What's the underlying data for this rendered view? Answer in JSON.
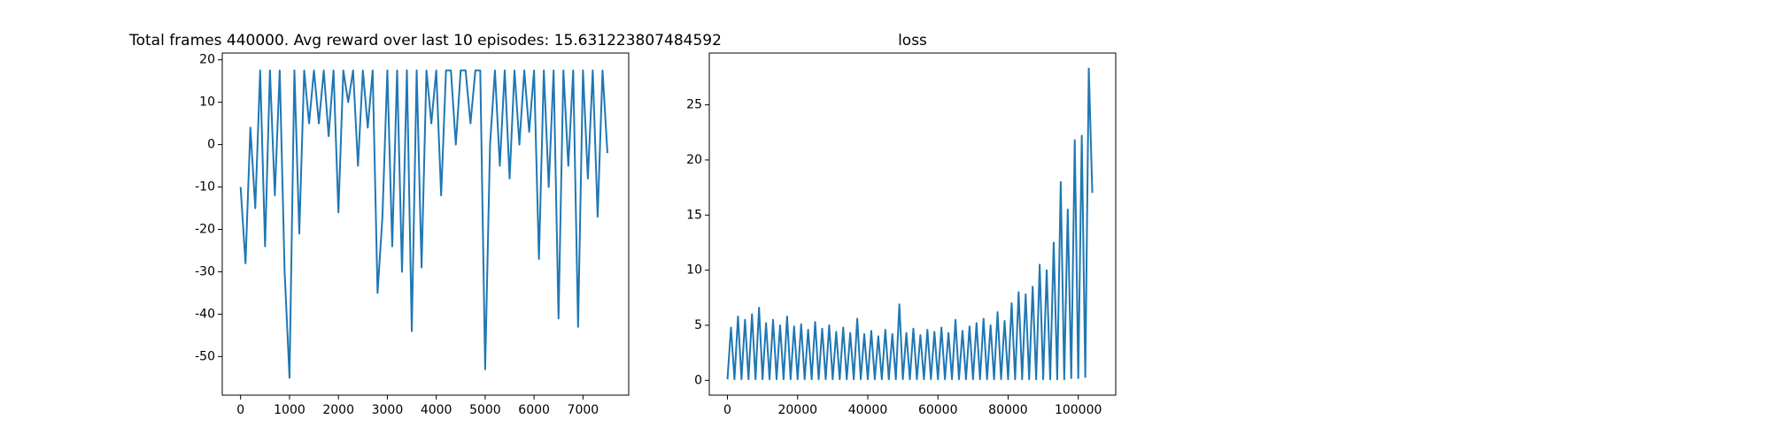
{
  "chart_data": [
    {
      "type": "line",
      "title": "Total frames 440000. Avg reward over last 10 episodes: 15.631223807484592",
      "x": [
        0,
        100,
        200,
        300,
        400,
        500,
        600,
        700,
        800,
        900,
        1000,
        1100,
        1200,
        1300,
        1400,
        1500,
        1600,
        1700,
        1800,
        1900,
        2000,
        2100,
        2200,
        2300,
        2400,
        2500,
        2600,
        2700,
        2800,
        2900,
        3000,
        3100,
        3200,
        3300,
        3400,
        3500,
        3600,
        3700,
        3800,
        3900,
        4000,
        4100,
        4200,
        4300,
        4400,
        4500,
        4600,
        4700,
        4800,
        4900,
        5000,
        5100,
        5200,
        5300,
        5400,
        5500,
        5600,
        5700,
        5800,
        5900,
        6000,
        6100,
        6200,
        6300,
        6400,
        6500,
        6600,
        6700,
        6800,
        6900,
        7000,
        7100,
        7200,
        7300,
        7400,
        7500
      ],
      "series": [
        {
          "color": "#1f77b4",
          "values": [
            -10,
            -28,
            4,
            -15,
            17.5,
            -24,
            17.5,
            -12,
            17.5,
            -30,
            -55,
            17.5,
            -21,
            17.5,
            5,
            17.5,
            5,
            17.5,
            2,
            17.5,
            -16,
            17.5,
            10,
            17.5,
            -5,
            17.5,
            4,
            17.5,
            -35,
            -17,
            17.5,
            -24,
            17.5,
            -30,
            17.5,
            -44,
            17.5,
            -29,
            17.5,
            5,
            17.5,
            -12,
            17.5,
            17.5,
            0,
            17.5,
            17.5,
            5,
            17.5,
            17.5,
            -53,
            0,
            17.5,
            -5,
            17.5,
            -8,
            17.5,
            0,
            17.5,
            3,
            17.5,
            -27,
            17.5,
            -10,
            17.5,
            -41,
            17.5,
            -5,
            17.5,
            -43,
            17.5,
            -8,
            17.5,
            -17,
            17.5,
            -2
          ]
        }
      ],
      "xlim": [
        -375,
        7935
      ],
      "ylim": [
        -59.1,
        21.6
      ],
      "xticks": [
        0,
        1000,
        2000,
        3000,
        4000,
        5000,
        6000,
        7000
      ],
      "yticks": [
        -50,
        -40,
        -30,
        -20,
        -10,
        0,
        10,
        20
      ]
    },
    {
      "type": "line",
      "title": "loss",
      "x": [
        0,
        1000,
        2000,
        3000,
        4000,
        5000,
        6000,
        7000,
        8000,
        9000,
        10000,
        11000,
        12000,
        13000,
        14000,
        15000,
        16000,
        17000,
        18000,
        19000,
        20000,
        21000,
        22000,
        23000,
        24000,
        25000,
        26000,
        27000,
        28000,
        29000,
        30000,
        31000,
        32000,
        33000,
        34000,
        35000,
        36000,
        37000,
        38000,
        39000,
        40000,
        41000,
        42000,
        43000,
        44000,
        45000,
        46000,
        47000,
        48000,
        49000,
        50000,
        51000,
        52000,
        53000,
        54000,
        55000,
        56000,
        57000,
        58000,
        59000,
        60000,
        61000,
        62000,
        63000,
        64000,
        65000,
        66000,
        67000,
        68000,
        69000,
        70000,
        71000,
        72000,
        73000,
        74000,
        75000,
        76000,
        77000,
        78000,
        79000,
        80000,
        81000,
        82000,
        83000,
        84000,
        85000,
        86000,
        87000,
        88000,
        89000,
        90000,
        91000,
        92000,
        93000,
        94000,
        95000,
        96000,
        97000,
        98000,
        99000,
        100000,
        101000,
        102000,
        103000,
        104000
      ],
      "series": [
        {
          "color": "#1f77b4",
          "values": [
            0.1,
            4.8,
            0.1,
            5.8,
            0.1,
            5.5,
            0.1,
            6.0,
            0.1,
            6.6,
            0.1,
            5.2,
            0.1,
            5.5,
            0.1,
            5.0,
            0.1,
            5.8,
            0.1,
            4.9,
            0.1,
            5.1,
            0.1,
            4.6,
            0.1,
            5.3,
            0.1,
            4.7,
            0.1,
            5.0,
            0.1,
            4.4,
            0.1,
            4.8,
            0.1,
            4.3,
            0.1,
            5.6,
            0.1,
            4.2,
            0.1,
            4.5,
            0.1,
            4.0,
            0.1,
            4.6,
            0.1,
            4.2,
            0.1,
            6.9,
            0.1,
            4.3,
            0.1,
            4.7,
            0.1,
            4.1,
            0.1,
            4.6,
            0.1,
            4.4,
            0.1,
            4.8,
            0.1,
            4.3,
            0.1,
            5.5,
            0.1,
            4.5,
            0.1,
            4.9,
            0.1,
            5.2,
            0.1,
            5.6,
            0.1,
            5.0,
            0.1,
            6.2,
            0.1,
            5.4,
            0.1,
            7.0,
            0.1,
            8.0,
            0.1,
            7.8,
            0.1,
            8.5,
            0.1,
            10.5,
            0.1,
            10.0,
            0.1,
            12.5,
            0.1,
            18.0,
            0.1,
            15.5,
            0.2,
            21.8,
            0.2,
            22.2,
            0.3,
            28.3,
            17.0
          ]
        }
      ],
      "xlim": [
        -5180,
        110680
      ],
      "ylim": [
        -1.34,
        29.7
      ],
      "xticks": [
        0,
        20000,
        40000,
        60000,
        80000,
        100000
      ],
      "yticks": [
        0,
        5,
        10,
        15,
        20,
        25
      ]
    }
  ]
}
